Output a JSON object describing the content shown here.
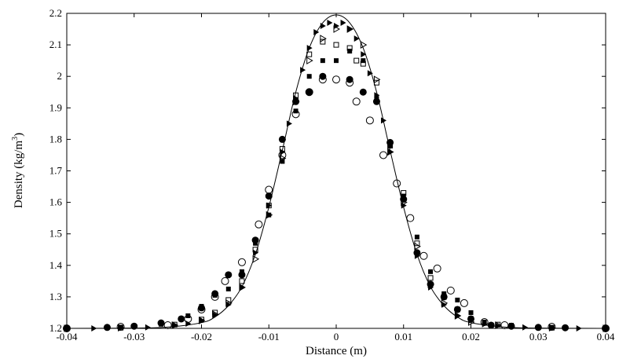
{
  "chart_data": {
    "type": "scatter",
    "xlabel": "Distance (m)",
    "ylabel_main": "Density (kg/m",
    "ylabel_sup": "3",
    "ylabel_close": ")",
    "xlim": [
      -0.04,
      0.04
    ],
    "ylim": [
      1.2,
      2.2
    ],
    "xticks": [
      "-0.04",
      "-0.03",
      "-0.02",
      "-0.01",
      "0",
      "0.01",
      "0.02",
      "0.03",
      "0.04"
    ],
    "yticks": [
      "1.2",
      "1.3",
      "1.4",
      "1.5",
      "1.6",
      "1.7",
      "1.8",
      "1.9",
      "2",
      "2.1",
      "2.2"
    ],
    "grid": false,
    "series": [
      {
        "marker": "line",
        "x": [
          -0.04,
          -0.03,
          -0.025,
          -0.02,
          -0.018,
          -0.016,
          -0.014,
          -0.012,
          -0.01,
          -0.008,
          -0.006,
          -0.004,
          -0.002,
          0,
          0.002,
          0.004,
          0.006,
          0.008,
          0.01,
          0.012,
          0.014,
          0.016,
          0.018,
          0.02,
          0.025,
          0.03,
          0.04
        ],
        "y": [
          1.2,
          1.201,
          1.204,
          1.218,
          1.236,
          1.272,
          1.332,
          1.435,
          1.585,
          1.765,
          1.95,
          2.09,
          2.17,
          2.195,
          2.17,
          2.09,
          1.95,
          1.765,
          1.585,
          1.435,
          1.332,
          1.272,
          1.236,
          1.218,
          1.204,
          1.201,
          1.2
        ]
      },
      {
        "marker": "filled-triangle-right",
        "x": [
          -0.04,
          -0.036,
          -0.032,
          -0.028,
          -0.024,
          -0.022,
          -0.02,
          -0.018,
          -0.016,
          -0.014,
          -0.012,
          -0.01,
          -0.008,
          -0.007,
          -0.006,
          -0.005,
          -0.004,
          -0.003,
          -0.002,
          -0.001,
          0,
          0.001,
          0.002,
          0.003,
          0.004,
          0.005,
          0.006,
          0.007,
          0.008,
          0.01,
          0.012,
          0.014,
          0.016,
          0.018,
          0.02,
          0.022,
          0.024,
          0.028,
          0.032,
          0.036,
          0.04
        ],
        "y": [
          1.2,
          1.2,
          1.201,
          1.203,
          1.209,
          1.215,
          1.226,
          1.243,
          1.275,
          1.33,
          1.44,
          1.59,
          1.76,
          1.85,
          1.93,
          2.02,
          2.09,
          2.14,
          2.16,
          2.17,
          2.16,
          2.17,
          2.15,
          2.12,
          2.07,
          2.01,
          1.94,
          1.86,
          1.76,
          1.59,
          1.43,
          1.33,
          1.275,
          1.24,
          1.225,
          1.213,
          1.208,
          1.203,
          1.201,
          1.2,
          1.2
        ]
      },
      {
        "marker": "open-triangle-right",
        "x": [
          -0.04,
          -0.032,
          -0.024,
          -0.02,
          -0.018,
          -0.016,
          -0.014,
          -0.012,
          -0.01,
          -0.008,
          -0.006,
          -0.004,
          -0.002,
          0,
          0.002,
          0.004,
          0.006,
          0.008,
          0.01,
          0.012,
          0.014,
          0.016,
          0.018,
          0.02,
          0.024,
          0.032,
          0.04
        ],
        "y": [
          1.2,
          1.202,
          1.21,
          1.225,
          1.245,
          1.28,
          1.33,
          1.42,
          1.56,
          1.74,
          1.92,
          2.05,
          2.12,
          2.15,
          2.15,
          2.1,
          1.99,
          1.76,
          1.6,
          1.46,
          1.34,
          1.28,
          1.24,
          1.22,
          1.21,
          1.202,
          1.2
        ]
      },
      {
        "marker": "open-square",
        "x": [
          -0.04,
          -0.032,
          -0.024,
          -0.02,
          -0.018,
          -0.016,
          -0.014,
          -0.012,
          -0.01,
          -0.008,
          -0.006,
          -0.004,
          -0.002,
          0,
          0.002,
          0.003,
          0.004,
          0.006,
          0.008,
          0.01,
          0.012,
          0.014,
          0.016,
          0.018,
          0.02,
          0.024,
          0.032,
          0.04
        ],
        "y": [
          1.2,
          1.202,
          1.212,
          1.228,
          1.25,
          1.29,
          1.35,
          1.45,
          1.59,
          1.77,
          1.94,
          2.07,
          2.11,
          2.1,
          2.09,
          2.05,
          2.04,
          1.98,
          1.78,
          1.63,
          1.47,
          1.36,
          1.3,
          1.26,
          1.23,
          1.212,
          1.202,
          1.2
        ]
      },
      {
        "marker": "filled-square",
        "x": [
          -0.04,
          -0.032,
          -0.026,
          -0.022,
          -0.02,
          -0.018,
          -0.016,
          -0.014,
          -0.012,
          -0.01,
          -0.008,
          -0.006,
          -0.004,
          -0.002,
          0,
          0.002,
          0.004,
          0.006,
          0.008,
          0.01,
          0.012,
          0.014,
          0.016,
          0.018,
          0.02,
          0.022,
          0.026,
          0.032,
          0.04
        ],
        "y": [
          1.2,
          1.204,
          1.213,
          1.24,
          1.27,
          1.305,
          1.325,
          1.38,
          1.47,
          1.56,
          1.73,
          1.89,
          2.0,
          2.05,
          2.05,
          2.08,
          2.05,
          1.93,
          1.78,
          1.62,
          1.49,
          1.38,
          1.31,
          1.29,
          1.25,
          1.22,
          1.21,
          1.203,
          1.2
        ]
      },
      {
        "marker": "filled-circle",
        "x": [
          -0.04,
          -0.034,
          -0.03,
          -0.026,
          -0.023,
          -0.02,
          -0.018,
          -0.016,
          -0.014,
          -0.012,
          -0.01,
          -0.008,
          -0.006,
          -0.004,
          -0.002,
          0.002,
          0.004,
          0.006,
          0.008,
          0.01,
          0.012,
          0.014,
          0.016,
          0.018,
          0.02,
          0.023,
          0.026,
          0.03,
          0.034,
          0.04
        ],
        "y": [
          1.2,
          1.203,
          1.207,
          1.217,
          1.23,
          1.265,
          1.31,
          1.37,
          1.37,
          1.48,
          1.62,
          1.8,
          1.92,
          1.95,
          2.0,
          1.99,
          1.95,
          1.92,
          1.79,
          1.61,
          1.44,
          1.34,
          1.3,
          1.26,
          1.23,
          1.21,
          1.207,
          1.203,
          1.202,
          1.2
        ]
      },
      {
        "marker": "open-circle",
        "x": [
          -0.04,
          -0.032,
          -0.025,
          -0.022,
          -0.02,
          -0.018,
          -0.0165,
          -0.014,
          -0.0115,
          -0.01,
          -0.008,
          -0.006,
          -0.004,
          -0.002,
          0,
          0.002,
          0.003,
          0.005,
          0.007,
          0.009,
          0.011,
          0.013,
          0.015,
          0.017,
          0.019,
          0.022,
          0.025,
          0.032,
          0.04
        ],
        "y": [
          1.2,
          1.205,
          1.21,
          1.23,
          1.26,
          1.3,
          1.35,
          1.41,
          1.53,
          1.64,
          1.75,
          1.88,
          1.95,
          1.99,
          1.99,
          1.98,
          1.92,
          1.86,
          1.75,
          1.66,
          1.55,
          1.43,
          1.39,
          1.32,
          1.28,
          1.22,
          1.21,
          1.205,
          1.2
        ]
      }
    ]
  }
}
